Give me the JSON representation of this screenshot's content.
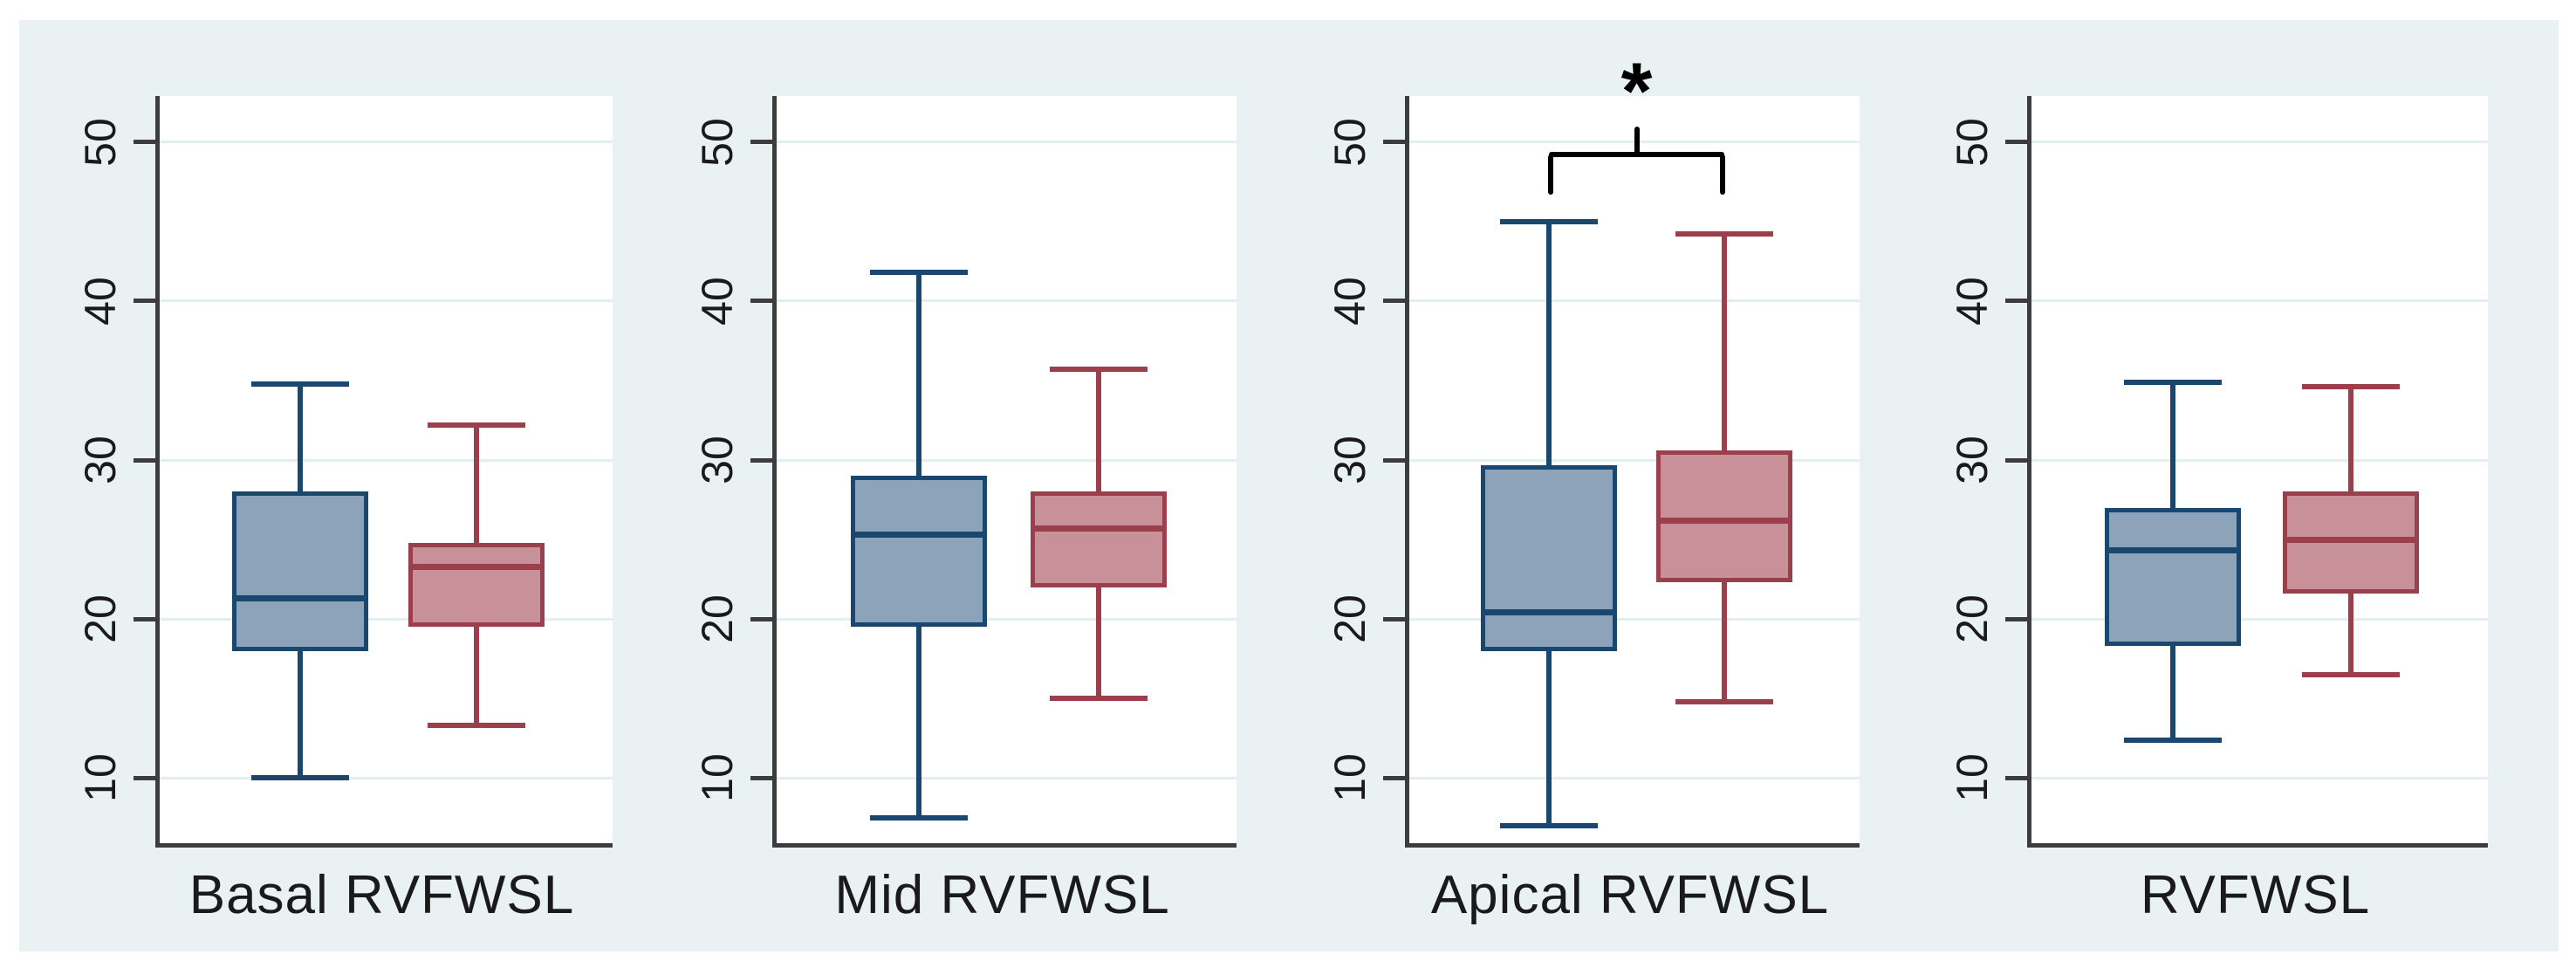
{
  "figure": {
    "background_color": "#eaf1f3",
    "plot_background_color": "#ffffff",
    "axis_color": "#3c3c3c",
    "grid_color": "#e4eef0",
    "text_color": "#1a1a1a"
  },
  "chart_data": {
    "type": "boxplot-grouped",
    "title": "",
    "xlabel": "",
    "ylabel": "",
    "legend": "none",
    "grid": true,
    "y_axis": {
      "ticks": [
        10,
        20,
        30,
        40,
        50
      ],
      "ylim": [
        5.9,
        52.9
      ],
      "tick_label_angle_deg": 90
    },
    "series_colors": [
      {
        "name": "blue",
        "fill": "#8ca3b9",
        "stroke": "#1a476f"
      },
      {
        "name": "red",
        "fill": "#c8919a",
        "stroke": "#9c3f4c"
      }
    ],
    "panels": [
      {
        "label": "Basal RVFWSL",
        "series": [
          {
            "name": "blue",
            "low": 10.0,
            "q1": 18.0,
            "median": 21.3,
            "q3": 28.0,
            "high": 34.8
          },
          {
            "name": "red",
            "low": 13.3,
            "q1": 19.5,
            "median": 23.3,
            "q3": 24.8,
            "high": 32.2
          }
        ],
        "significance": null
      },
      {
        "label": "Mid RVFWSL",
        "series": [
          {
            "name": "blue",
            "low": 7.5,
            "q1": 19.5,
            "median": 25.3,
            "q3": 29.0,
            "high": 41.8
          },
          {
            "name": "red",
            "low": 15.0,
            "q1": 22.0,
            "median": 25.7,
            "q3": 28.0,
            "high": 35.7
          }
        ],
        "significance": null
      },
      {
        "label": "Apical RVFWSL",
        "series": [
          {
            "name": "blue",
            "low": 7.0,
            "q1": 18.0,
            "median": 20.4,
            "q3": 29.7,
            "high": 45.0
          },
          {
            "name": "red",
            "low": 14.8,
            "q1": 22.3,
            "median": 26.2,
            "q3": 30.6,
            "high": 44.2
          }
        ],
        "significance": {
          "symbol": "*",
          "between": [
            "blue",
            "red"
          ],
          "bar_y_value": 49.2
        }
      },
      {
        "label": "RVFWSL",
        "series": [
          {
            "name": "blue",
            "low": 12.4,
            "q1": 18.3,
            "median": 24.3,
            "q3": 27.0,
            "high": 34.9
          },
          {
            "name": "red",
            "low": 16.5,
            "q1": 21.6,
            "median": 25.0,
            "q3": 28.0,
            "high": 34.6
          }
        ],
        "significance": null
      }
    ]
  }
}
